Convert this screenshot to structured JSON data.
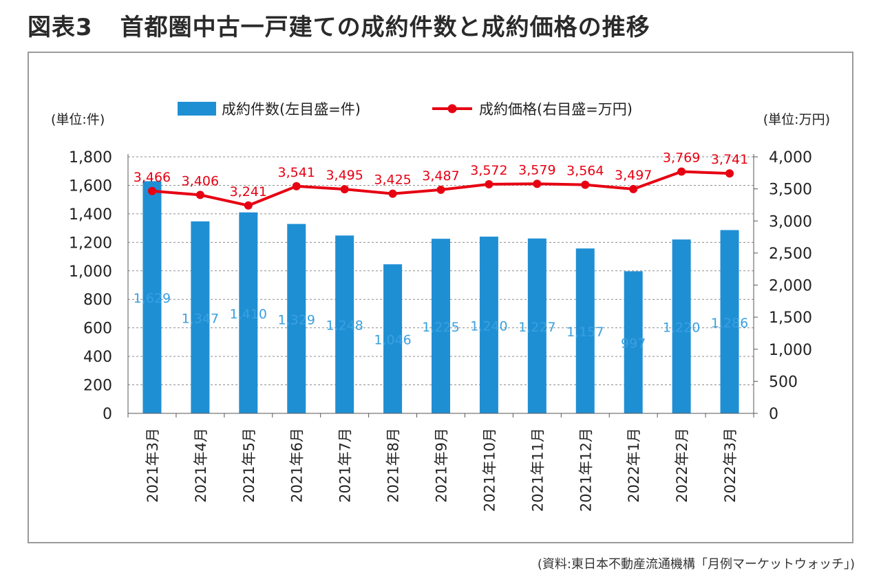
{
  "title_number": "図表3",
  "title_text": "首都圏中古一戸建ての成約件数と成約価格の推移",
  "source": "(資料:東日本不動産流通機構「月例マーケットウォッチ」)",
  "chart_data": {
    "type": "bar+line",
    "categories": [
      "2021年3月",
      "2021年4月",
      "2021年5月",
      "2021年6月",
      "2021年7月",
      "2021年8月",
      "2021年9月",
      "2021年10月",
      "2021年11月",
      "2021年12月",
      "2022年1月",
      "2022年2月",
      "2022年3月"
    ],
    "series": [
      {
        "name": "成約件数(左目盛=件)",
        "type": "bar",
        "axis": "left",
        "color": "#1f8fd4",
        "label_color": "#3aa0e0",
        "values": [
          1629,
          1347,
          1410,
          1329,
          1248,
          1046,
          1225,
          1240,
          1227,
          1157,
          997,
          1220,
          1286
        ],
        "labels": [
          "1,629",
          "1,347",
          "1,410",
          "1,329",
          "1,248",
          "1,046",
          "1,225",
          "1,240",
          "1,227",
          "1,157",
          "997",
          "1,220",
          "1,286"
        ]
      },
      {
        "name": "成約価格(右目盛=万円)",
        "type": "line",
        "axis": "right",
        "color": "#e60012",
        "values": [
          3466,
          3406,
          3241,
          3541,
          3495,
          3425,
          3487,
          3572,
          3579,
          3564,
          3497,
          3769,
          3741
        ],
        "labels": [
          "3,466",
          "3,406",
          "3,241",
          "3,541",
          "3,495",
          "3,425",
          "3,487",
          "3,572",
          "3,579",
          "3,564",
          "3,497",
          "3,769",
          "3,741"
        ]
      }
    ],
    "left_axis": {
      "unit_label": "(単位:件)",
      "ylim": [
        0,
        1800
      ],
      "ticks": [
        0,
        200,
        400,
        600,
        800,
        1000,
        1200,
        1400,
        1600,
        1800
      ],
      "tick_labels": [
        "0",
        "200",
        "400",
        "600",
        "800",
        "1,000",
        "1,200",
        "1,400",
        "1,600",
        "1,800"
      ]
    },
    "right_axis": {
      "unit_label": "(単位:万円)",
      "ylim": [
        0,
        4000
      ],
      "ticks": [
        0,
        500,
        1000,
        1500,
        2000,
        2500,
        3000,
        3500,
        4000
      ],
      "tick_labels": [
        "0",
        "500",
        "1,000",
        "1,500",
        "2,000",
        "2,500",
        "3,000",
        "3,500",
        "4,000"
      ]
    },
    "grid": "dashed horizontal",
    "legend_position": "top-center"
  }
}
